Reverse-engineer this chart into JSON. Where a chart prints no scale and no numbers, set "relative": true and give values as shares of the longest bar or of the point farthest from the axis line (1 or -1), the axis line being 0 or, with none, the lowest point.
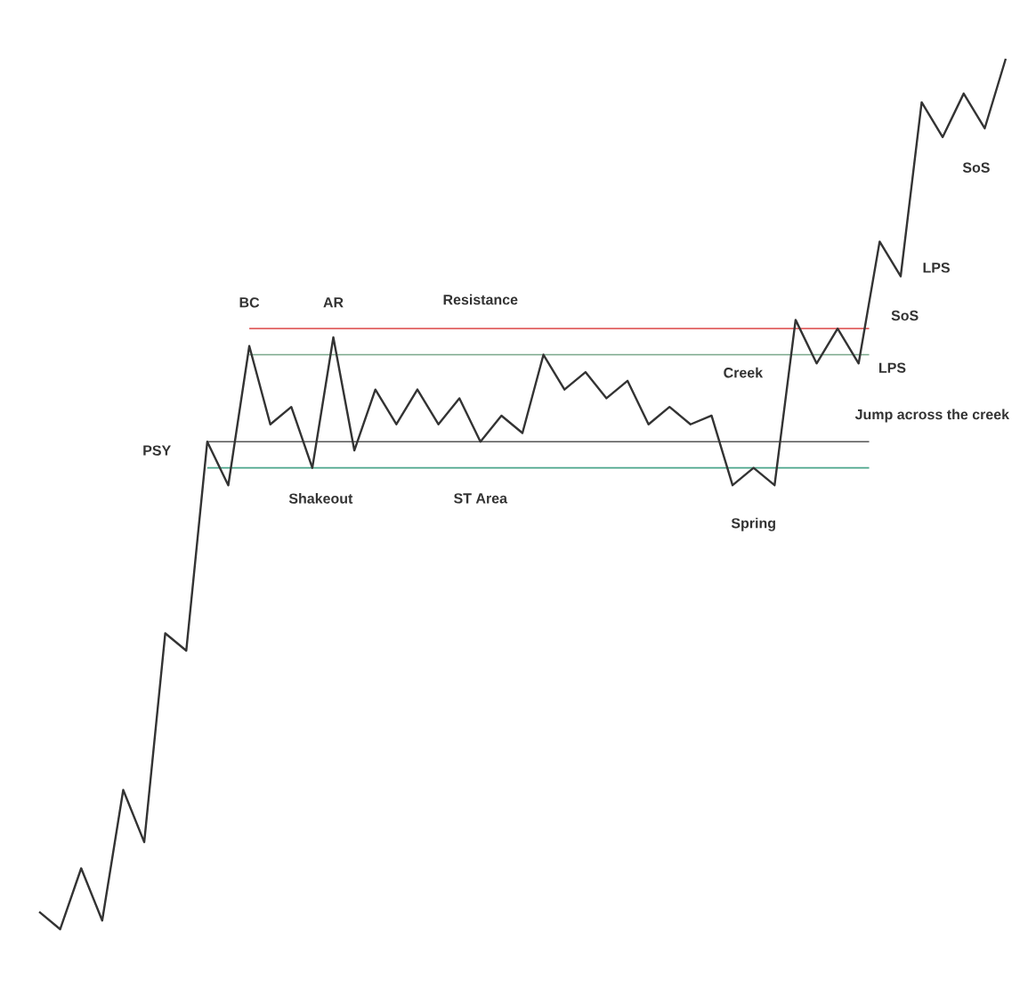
{
  "chart_data": {
    "type": "line",
    "relative": true,
    "categories": [
      null,
      null,
      null,
      null,
      null,
      null,
      null,
      null,
      null,
      null,
      null,
      null,
      null,
      null,
      null,
      null,
      null,
      null,
      null,
      null,
      null,
      null,
      null,
      null,
      null,
      null,
      null,
      null,
      null,
      null,
      null,
      null,
      null,
      null,
      null,
      null,
      null,
      null,
      null,
      null,
      null,
      null,
      null,
      null,
      null,
      null,
      null
    ],
    "series": [
      {
        "color": "#333333",
        "values": [
          0.02,
          0,
          0.07,
          0.01,
          0.16,
          0.1,
          0.34,
          0.32,
          0.56,
          0.51,
          0.67,
          0.58,
          0.6,
          0.53,
          0.68,
          0.55,
          0.62,
          0.58,
          0.62,
          0.58,
          0.61,
          0.56,
          0.59,
          0.57,
          0.66,
          0.62,
          0.64,
          0.61,
          0.63,
          0.58,
          0.6,
          0.58,
          0.59,
          0.51,
          0.53,
          0.51,
          0.7,
          0.65,
          0.69,
          0.65,
          0.79,
          0.75,
          0.95,
          0.91,
          0.96,
          0.92,
          1.0
        ]
      }
    ],
    "ref_lines": [
      {
        "axis": "y",
        "value": 0.69,
        "label": "Resistance",
        "color": "#e06060"
      },
      {
        "axis": "y",
        "value": 0.66,
        "label": "Creek",
        "color": "#7aa88a"
      },
      {
        "axis": "y",
        "value": 0.56,
        "color": "#555555"
      },
      {
        "axis": "y",
        "value": 0.53,
        "color": "#4aa58a"
      }
    ],
    "annotations": [
      "BC",
      "AR",
      "PSY",
      "Shakeout",
      "ST Area",
      "Spring",
      "LPS",
      "Jump across the creek",
      "SoS",
      "LPS",
      "SoS"
    ]
  }
}
